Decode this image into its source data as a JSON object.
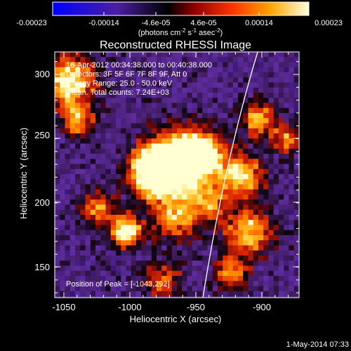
{
  "colorbar": {
    "ticks": [
      "-0.00023",
      "-0.00014",
      "-4.6e-05",
      "4.6e-05",
      "0.00014",
      "0.00023"
    ],
    "unit_prefix": "(photons cm",
    "unit_sup1": "-2",
    "unit_mid": " s",
    "unit_sup2": "-1",
    "unit_mid2": " asec",
    "unit_sup3": "-2",
    "unit_suffix": ")"
  },
  "title": "Reconstructed RHESSI Image",
  "annotations": {
    "time_range": "16-Apr-2012 00:34:38.000 to 00:40:38.000",
    "detectors": "Detectors: 3F 5F 6F 7F 8F 9F, Att 0",
    "energy_range": "Energy Range: 25.0 - 50.0 keV",
    "clean": "Clean. Total counts: 7.24E+03",
    "peak": "Position of Peak = [-1043,292]"
  },
  "axes": {
    "xlabel": "Heliocentric X (arcsec)",
    "ylabel": "Heliocentric Y (arcsec)",
    "x_ticks": [
      "-1050",
      "-1000",
      "-950",
      "-900"
    ],
    "y_ticks": [
      "300",
      "250",
      "200",
      "150"
    ]
  },
  "footer": {
    "timestamp": "1-May-2014 07:33"
  }
}
